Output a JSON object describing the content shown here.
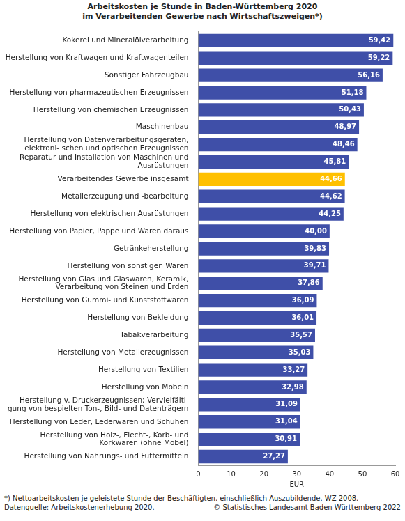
{
  "chart_data": {
    "type": "bar",
    "orientation": "horizontal",
    "title": [
      "Arbeitskosten je Stunde in Baden-Württemberg 2020",
      "im Verarbeitenden Gewerbe nach Wirtschaftszweigen*)"
    ],
    "categories": [
      "Kokerei und Mineralölverarbeitung",
      "Herstellung von Kraftwagen und Kraftwagenteilen",
      "Sonstiger Fahrzeugbau",
      "Herstellung von pharmazeutischen Erzeugnissen",
      "Herstellung von chemischen Erzeugnissen",
      "Maschinenbau",
      "Herstellung von Datenverarbeitungsgeräten,\nelektroni- schen und optischen Erzeugnissen",
      "Reparatur und Installation von Maschinen und\nAusrüstungen",
      "Verarbeitendes Gewerbe insgesamt",
      "Metallerzeugung und -bearbeitung",
      "Herstellung von elektrischen Ausrüstungen",
      "Herstellung von Papier, Pappe und Waren daraus",
      "Getränkeherstellung",
      "Herstellung von sonstigen Waren",
      "Herstellung von Glas und Glaswaren, Keramik,\nVerarbeitung von Steinen und Erden",
      "Herstellung von Gummi- und Kunststoffwaren",
      "Herstellung von Bekleidung",
      "Tabakverarbeitung",
      "Herstellung von Metallerzeugnissen",
      "Herstellung von Textilien",
      "Herstellung von Möbeln",
      "Herstellung v. Druckerzeugnissen; Vervielfälti-\ngung von bespielten Ton-, Bild- und Datenträgern",
      "Herstellung von Leder, Lederwaren und Schuhen",
      "Herstellung von Holz-, Flecht-, Korb- und\nKorkwaren (ohne Möbel)",
      "Herstellung von Nahrungs- und Futtermitteln"
    ],
    "values": [
      59.42,
      59.22,
      56.16,
      51.18,
      50.43,
      48.97,
      48.46,
      45.81,
      44.66,
      44.62,
      44.25,
      40.0,
      39.83,
      39.71,
      37.86,
      36.09,
      36.01,
      35.57,
      35.03,
      33.27,
      32.98,
      31.09,
      31.04,
      30.91,
      27.27
    ],
    "value_labels": [
      "59,42",
      "59,22",
      "56,16",
      "51,18",
      "50,43",
      "48,97",
      "48,46",
      "45,81",
      "44,66",
      "44,62",
      "44,25",
      "40,00",
      "39,83",
      "39,71",
      "37,86",
      "36,09",
      "36,01",
      "35,57",
      "35,03",
      "33,27",
      "32,98",
      "31,09",
      "31,04",
      "30,91",
      "27,27"
    ],
    "colors": [
      "#3f4fa8",
      "#3f4fa8",
      "#3f4fa8",
      "#3f4fa8",
      "#3f4fa8",
      "#3f4fa8",
      "#3f4fa8",
      "#3f4fa8",
      "#ffc000",
      "#3f4fa8",
      "#3f4fa8",
      "#3f4fa8",
      "#3f4fa8",
      "#3f4fa8",
      "#3f4fa8",
      "#3f4fa8",
      "#3f4fa8",
      "#3f4fa8",
      "#3f4fa8",
      "#3f4fa8",
      "#3f4fa8",
      "#3f4fa8",
      "#3f4fa8",
      "#3f4fa8",
      "#3f4fa8"
    ],
    "data_labels": true,
    "x_label": "EUR",
    "xlim": [
      0,
      60
    ],
    "xticks": [
      0,
      10,
      20,
      30,
      40,
      50,
      60
    ],
    "grid": false,
    "footnote": "*) Nettoarbeitskosten je geleistete Stunde der Beschäftigten, einschließlich Auszubildende. WZ 2008.",
    "source": "Datenquelle: Arbeitskostenerhebung 2020.",
    "copyright": "© Statistisches Landesamt Baden-Württemberg 2022"
  }
}
